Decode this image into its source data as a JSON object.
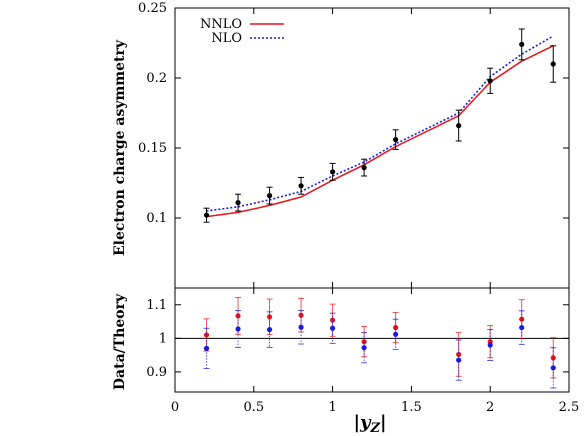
{
  "chart_data": [
    {
      "type": "line",
      "ylabel": "Electron charge asymmetry",
      "xlim": [
        0,
        2.5
      ],
      "ylim": [
        0.05,
        0.25
      ],
      "yticks": [
        0.1,
        0.15,
        0.2,
        0.25
      ],
      "ytick_labels": [
        "0.1",
        "0.15",
        "0.2",
        "0.25"
      ],
      "legend_position": "top-left",
      "series": [
        {
          "name": "NNLO",
          "style": "solid",
          "color": "#e8141a",
          "x": [
            0.2,
            0.4,
            0.6,
            0.8,
            1.0,
            1.2,
            1.4,
            1.8,
            2.0,
            2.2,
            2.4
          ],
          "y": [
            0.101,
            0.104,
            0.109,
            0.115,
            0.127,
            0.138,
            0.151,
            0.173,
            0.197,
            0.212,
            0.223
          ]
        },
        {
          "name": "NLO",
          "style": "dotted",
          "color": "#1a1ae0",
          "x": [
            0.2,
            0.4,
            0.6,
            0.8,
            1.0,
            1.2,
            1.4,
            1.8,
            2.0,
            2.2,
            2.4
          ],
          "y": [
            0.105,
            0.108,
            0.113,
            0.119,
            0.13,
            0.14,
            0.153,
            0.175,
            0.201,
            0.217,
            0.23
          ]
        }
      ],
      "data_points": {
        "color": "#000000",
        "x": [
          0.2,
          0.4,
          0.6,
          0.8,
          1.0,
          1.2,
          1.4,
          1.8,
          2.0,
          2.2,
          2.4
        ],
        "y": [
          0.102,
          0.111,
          0.116,
          0.123,
          0.133,
          0.136,
          0.156,
          0.166,
          0.198,
          0.224,
          0.21
        ],
        "err": [
          0.005,
          0.006,
          0.006,
          0.006,
          0.006,
          0.006,
          0.007,
          0.011,
          0.009,
          0.011,
          0.013
        ]
      }
    },
    {
      "type": "scatter",
      "xlabel": "|yZ|",
      "ylabel": "Data/Theory",
      "xlim": [
        0,
        2.5
      ],
      "ylim": [
        0.84,
        1.15
      ],
      "xticks": [
        0,
        0.5,
        1,
        1.5,
        2,
        2.5
      ],
      "xtick_labels": [
        "0",
        "0.5",
        "1",
        "1.5",
        "2",
        "2.5"
      ],
      "yticks": [
        0.9,
        1.0,
        1.1
      ],
      "ytick_labels": [
        "0.9",
        "1",
        "1.1"
      ],
      "reference_line": 1,
      "series": [
        {
          "name": "NNLO",
          "color": "#e8141a",
          "x": [
            0.2,
            0.4,
            0.6,
            0.8,
            1.0,
            1.2,
            1.4,
            1.8,
            2.0,
            2.2,
            2.4
          ],
          "y": [
            1.01,
            1.067,
            1.064,
            1.069,
            1.054,
            0.99,
            1.032,
            0.952,
            0.99,
            1.057,
            0.942
          ],
          "err": [
            0.048,
            0.055,
            0.053,
            0.05,
            0.048,
            0.045,
            0.045,
            0.065,
            0.048,
            0.058,
            0.06
          ]
        },
        {
          "name": "NLO",
          "color": "#1a1ae0",
          "x": [
            0.2,
            0.4,
            0.6,
            0.8,
            1.0,
            1.2,
            1.4,
            1.8,
            2.0,
            2.2,
            2.4
          ],
          "y": [
            0.97,
            1.028,
            1.026,
            1.033,
            1.03,
            0.972,
            1.012,
            0.935,
            0.98,
            1.032,
            0.912
          ],
          "err": [
            0.06,
            0.055,
            0.053,
            0.05,
            0.045,
            0.045,
            0.045,
            0.06,
            0.046,
            0.05,
            0.06
          ]
        }
      ]
    }
  ]
}
